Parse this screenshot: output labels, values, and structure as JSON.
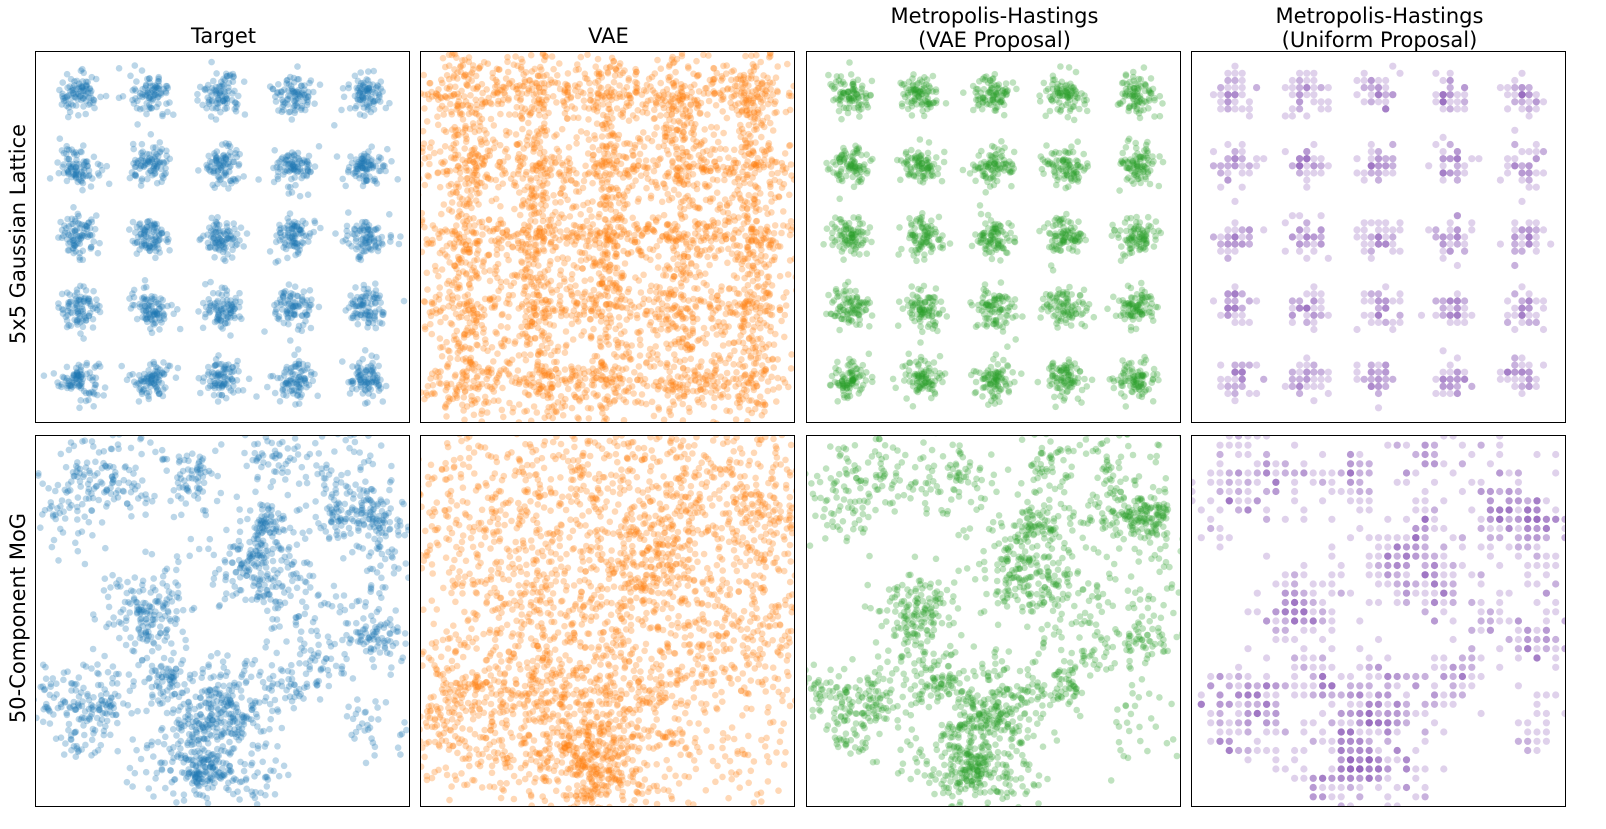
{
  "figure": {
    "column_titles": [
      "Target",
      "VAE",
      "Metropolis-Hastings\n(VAE Proposal)",
      "Metropolis-Hastings\n(Uniform Proposal)"
    ],
    "row_labels": [
      "5x5 Gaussian Lattice",
      "50-Component MoG"
    ]
  },
  "colors": {
    "target": "#1f77b4",
    "vae": "#ff7f0e",
    "mh_vae": "#2ca02c",
    "mh_uniform": "#9467bd"
  },
  "chart_data": [
    {
      "type": "scatter",
      "row": "5x5 Gaussian Lattice",
      "column": "Target",
      "series": [
        {
          "kind": "lattice",
          "centers_x": [
            -2,
            -1,
            0,
            1,
            2
          ],
          "centers_y": [
            -2,
            -1,
            0,
            1,
            2
          ],
          "spread": 0.14,
          "color": "#1f77b4",
          "alpha": 0.3
        }
      ],
      "xlim": [
        -2.6,
        2.6
      ],
      "ylim": [
        -2.6,
        2.6
      ],
      "ticks": "none",
      "grid": false
    },
    {
      "type": "scatter",
      "row": "5x5 Gaussian Lattice",
      "column": "VAE",
      "series": [
        {
          "kind": "lattice-blurred",
          "centers_x": [
            -2,
            -1,
            0,
            1,
            2
          ],
          "centers_y": [
            -2,
            -1,
            0,
            1,
            2
          ],
          "spread": 0.3,
          "color": "#ff7f0e",
          "alpha": 0.3
        }
      ],
      "xlim": [
        -2.6,
        2.6
      ],
      "ylim": [
        -2.6,
        2.6
      ],
      "ticks": "none",
      "grid": false
    },
    {
      "type": "scatter",
      "row": "5x5 Gaussian Lattice",
      "column": "Metropolis-Hastings (VAE Proposal)",
      "series": [
        {
          "kind": "lattice",
          "centers_x": [
            -2,
            -1,
            0,
            1,
            2
          ],
          "centers_y": [
            -2,
            -1,
            0,
            1,
            2
          ],
          "spread": 0.14,
          "color": "#2ca02c",
          "alpha": 0.3
        }
      ],
      "xlim": [
        -2.6,
        2.6
      ],
      "ylim": [
        -2.6,
        2.6
      ],
      "ticks": "none",
      "grid": false
    },
    {
      "type": "scatter",
      "row": "5x5 Gaussian Lattice",
      "column": "Metropolis-Hastings (Uniform Proposal)",
      "series": [
        {
          "kind": "lattice-gridded",
          "centers_x": [
            -2,
            -1,
            0,
            1,
            2
          ],
          "centers_y": [
            -2,
            -1,
            0,
            1,
            2
          ],
          "spread": 0.14,
          "grid_step": 0.1,
          "color": "#9467bd",
          "alpha": 0.3
        }
      ],
      "xlim": [
        -2.6,
        2.6
      ],
      "ylim": [
        -2.6,
        2.6
      ],
      "ticks": "none",
      "grid": false
    },
    {
      "type": "scatter",
      "row": "50-Component MoG",
      "column": "Target",
      "series": [
        {
          "kind": "mog",
          "components": 50,
          "color": "#1f77b4",
          "alpha": 0.3
        }
      ],
      "xlim": [
        0,
        1
      ],
      "ylim": [
        0,
        1
      ],
      "ticks": "none",
      "grid": false
    },
    {
      "type": "scatter",
      "row": "50-Component MoG",
      "column": "VAE",
      "series": [
        {
          "kind": "mog-blurred",
          "components": 50,
          "color": "#ff7f0e",
          "alpha": 0.3
        }
      ],
      "xlim": [
        0,
        1
      ],
      "ylim": [
        0,
        1
      ],
      "ticks": "none",
      "grid": false
    },
    {
      "type": "scatter",
      "row": "50-Component MoG",
      "column": "Metropolis-Hastings (VAE Proposal)",
      "series": [
        {
          "kind": "mog",
          "components": 50,
          "color": "#2ca02c",
          "alpha": 0.3
        }
      ],
      "xlim": [
        0,
        1
      ],
      "ylim": [
        0,
        1
      ],
      "ticks": "none",
      "grid": false
    },
    {
      "type": "scatter",
      "row": "50-Component MoG",
      "column": "Metropolis-Hastings (Uniform Proposal)",
      "series": [
        {
          "kind": "mog-gridded",
          "components": 50,
          "grid_step": 0.025,
          "color": "#9467bd",
          "alpha": 0.3
        }
      ],
      "xlim": [
        0,
        1
      ],
      "ylim": [
        0,
        1
      ],
      "ticks": "none",
      "grid": false
    }
  ]
}
